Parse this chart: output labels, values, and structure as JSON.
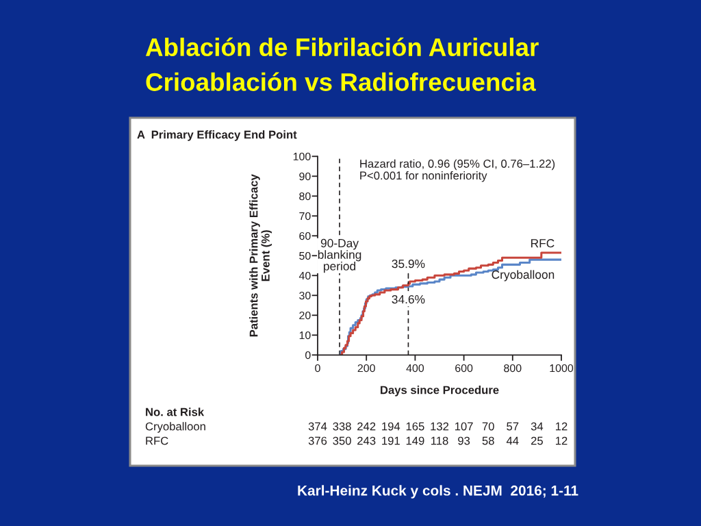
{
  "chart_data": [
    {
      "type": "step",
      "title": "Ablación de Fibrilación Auricular\nCrioablación vs Radiofrecuencia",
      "subtitle": "A  Primary Efficacy End Point",
      "xlabel": "Days since Procedure",
      "ylabel": "Patients with Primary Efficacy\nEvent (%)",
      "xlim": [
        0,
        1000
      ],
      "xticks": [
        0,
        200,
        400,
        600,
        800,
        1000
      ],
      "ylim": [
        0,
        100
      ],
      "yticks": [
        0,
        10,
        20,
        30,
        40,
        50,
        60,
        70,
        80,
        90,
        100
      ],
      "series": [
        {
          "name": "Cryoballoon",
          "color": "#5a86c8",
          "x": [
            92,
            96,
            105,
            115,
            122,
            125,
            130,
            135,
            145,
            155,
            165,
            175,
            180,
            185,
            190,
            195,
            200,
            207,
            215,
            225,
            235,
            245,
            260,
            280,
            320,
            345,
            372,
            390,
            420,
            450,
            480,
            500,
            520,
            545,
            630,
            650,
            680,
            700,
            720,
            740,
            757,
            830,
            870,
            1000
          ],
          "values": [
            0,
            2,
            3,
            4.5,
            6,
            9.5,
            11.5,
            13.5,
            15,
            16.5,
            17.5,
            18.5,
            20,
            22,
            23.5,
            26,
            28,
            29.5,
            30,
            30.5,
            31.5,
            32.5,
            33,
            33.5,
            34,
            34.3,
            34.6,
            35.5,
            36,
            36.5,
            37,
            38,
            39,
            40,
            40.5,
            41.5,
            42,
            42.5,
            43,
            44,
            45.5,
            46.5,
            48,
            48
          ]
        },
        {
          "name": "RFC",
          "color": "#c8463c",
          "x": [
            94,
            100,
            108,
            115,
            122,
            128,
            135,
            145,
            155,
            165,
            172,
            180,
            187,
            192,
            198,
            205,
            212,
            220,
            235,
            255,
            275,
            300,
            330,
            350,
            372,
            378,
            400,
            430,
            450,
            480,
            520,
            560,
            580,
            600,
            620,
            650,
            670,
            700,
            720,
            740,
            757,
            918,
            1000
          ],
          "values": [
            0,
            1.5,
            3.5,
            5,
            7,
            9.5,
            11,
            12.5,
            14,
            16,
            17.5,
            19.5,
            22,
            24.5,
            27,
            28.5,
            29.5,
            30,
            30.5,
            31.5,
            32.5,
            33,
            34,
            35,
            35.9,
            37,
            37.5,
            38,
            39,
            40,
            40.5,
            41,
            42,
            42.5,
            43.5,
            44,
            45,
            45.5,
            46.5,
            47.5,
            49,
            51.5,
            51.5
          ]
        }
      ],
      "ref_lines": [
        {
          "axis": "x",
          "value": 90,
          "label": "90-Day\nblanking\nperiod",
          "color": "#231f20",
          "line_style": "dashed"
        },
        {
          "axis": "x",
          "value": 372,
          "color": "#231f20",
          "line_style": "dashed"
        }
      ],
      "annotations": [
        "Hazard ratio, 0.96 (95% CI, 0.76–1.22)\nP<0.001 for noninferiority",
        {
          "text": "35.9%",
          "x": 372,
          "y": 35.9
        },
        {
          "text": "34.6%",
          "x": 372,
          "y": 34.6
        },
        "Karl-Heinz Kuck y cols . NEJM  2016; 1-11"
      ]
    },
    {
      "type": "other",
      "title": "No. at Risk",
      "annotations": [
        "Cryoballoon 374 338 242 194 165 132 107 70 57 34 12",
        "RFC 376 350 243 191 149 118 93 58 44 25 12"
      ]
    }
  ]
}
